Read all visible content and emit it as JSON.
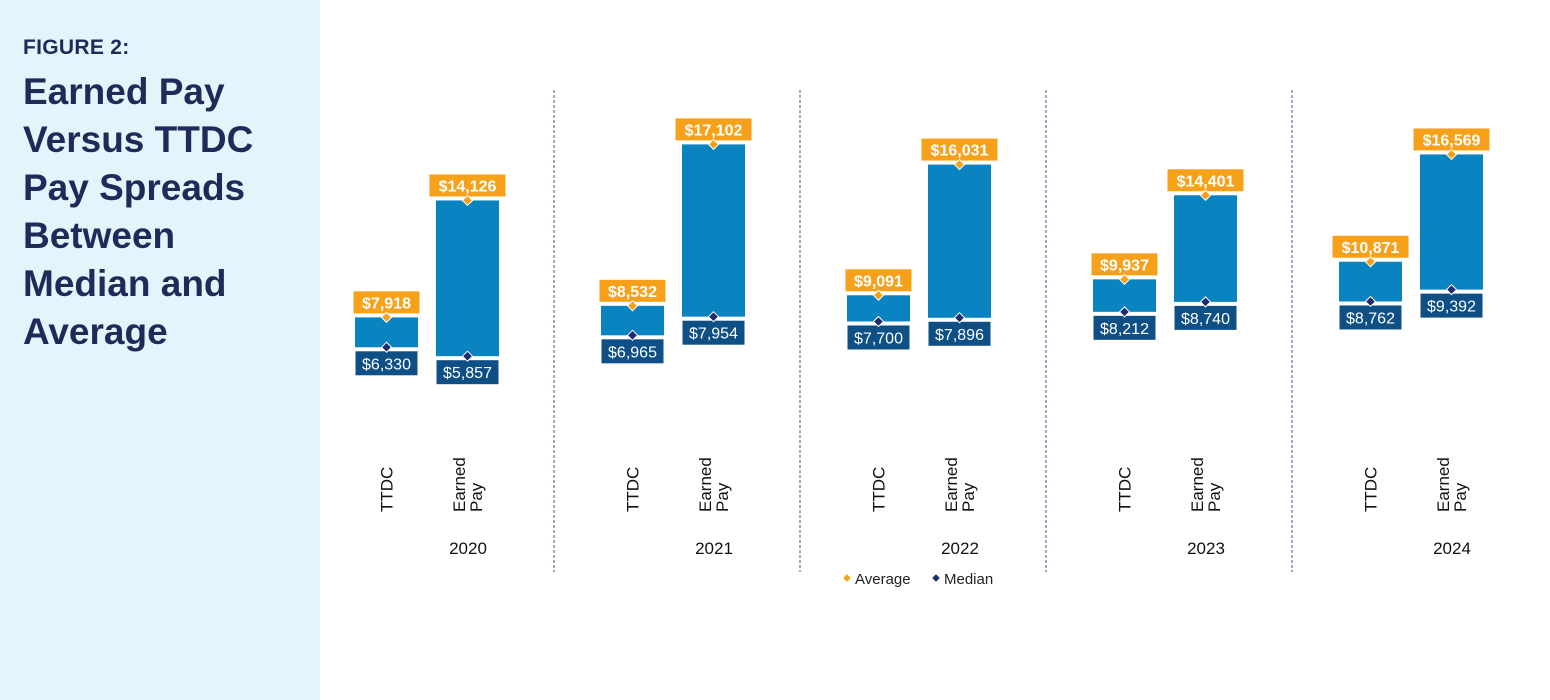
{
  "figure": {
    "label": "FIGURE 2:",
    "title": "Earned Pay Versus TTDC Pay Spreads Between Median and Average"
  },
  "colors": {
    "sidebar_bg": "#e3f4fb",
    "title_text": "#1e2b59",
    "bar": "#0a84c1",
    "average": "#f7a11a",
    "median": "#0e4f85",
    "median_marker": "#1e2b6e",
    "divider": "#6b3a8c"
  },
  "chart_data": {
    "type": "floating-bar",
    "title": "Earned Pay Versus TTDC Pay Spreads Between Median and Average",
    "legend": [
      {
        "key": "average",
        "label": "Average",
        "marker": "diamond"
      },
      {
        "key": "median",
        "label": "Median",
        "marker": "diamond"
      }
    ],
    "legend_position": "bottom-center",
    "ylim": [
      0,
      24000
    ],
    "groups": [
      {
        "year": "2020",
        "bars": [
          {
            "category": "TTDC",
            "average": 7918,
            "median": 6330,
            "average_label": "$7,918",
            "median_label": "$6,330"
          },
          {
            "category": "Earned Pay",
            "average": 14126,
            "median": 5857,
            "average_label": "$14,126",
            "median_label": "$5,857"
          }
        ]
      },
      {
        "year": "2021",
        "bars": [
          {
            "category": "TTDC",
            "average": 8532,
            "median": 6965,
            "average_label": "$8,532",
            "median_label": "$6,965"
          },
          {
            "category": "Earned Pay",
            "average": 17102,
            "median": 7954,
            "average_label": "$17,102",
            "median_label": "$7,954"
          }
        ]
      },
      {
        "year": "2022",
        "bars": [
          {
            "category": "TTDC",
            "average": 9091,
            "median": 7700,
            "average_label": "$9,091",
            "median_label": "$7,700"
          },
          {
            "category": "Earned Pay",
            "average": 16031,
            "median": 7896,
            "average_label": "$16,031",
            "median_label": "$7,896"
          }
        ]
      },
      {
        "year": "2023",
        "bars": [
          {
            "category": "TTDC",
            "average": 9937,
            "median": 8212,
            "average_label": "$9,937",
            "median_label": "$8,212"
          },
          {
            "category": "Earned Pay",
            "average": 14401,
            "median": 8740,
            "average_label": "$14,401",
            "median_label": "$8,740"
          }
        ]
      },
      {
        "year": "2024",
        "bars": [
          {
            "category": "TTDC",
            "average": 10871,
            "median": 8762,
            "average_label": "$10,871",
            "median_label": "$8,762"
          },
          {
            "category": "Earned Pay",
            "average": 16569,
            "median": 9392,
            "average_label": "$16,569",
            "median_label": "$9,392"
          }
        ]
      }
    ]
  }
}
